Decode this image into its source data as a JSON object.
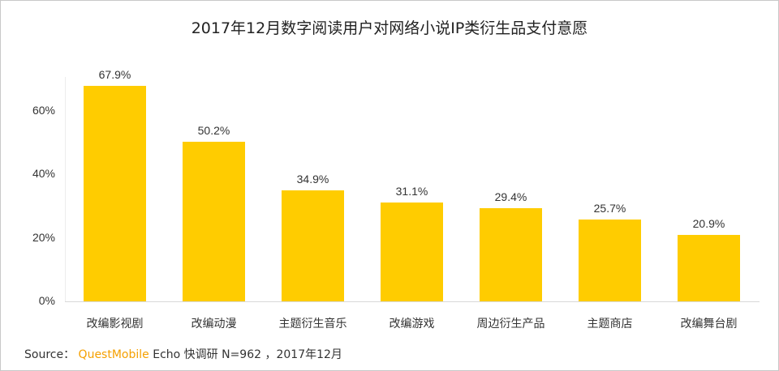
{
  "title": "2017年12月数字阅读用户对网络小说IP类衍生品支付意愿",
  "source": {
    "prefix": "Source：",
    "brand": "QuestMobile",
    "rest": "Echo 快调研  N=962 ，2017年12月"
  },
  "colors": {
    "bar": "#FFCC00",
    "brand": "#F5A000"
  },
  "yaxis": {
    "ticks": [
      "0%",
      "20%",
      "40%",
      "60%"
    ]
  },
  "bars": [
    {
      "label": "改编影视剧",
      "value": 67.9,
      "display": "67.9%"
    },
    {
      "label": "改编动漫",
      "value": 50.2,
      "display": "50.2%"
    },
    {
      "label": "主题衍生音乐",
      "value": 34.9,
      "display": "34.9%"
    },
    {
      "label": "改编游戏",
      "value": 31.1,
      "display": "31.1%"
    },
    {
      "label": "周边衍生产品",
      "value": 29.4,
      "display": "29.4%"
    },
    {
      "label": "主题商店",
      "value": 25.7,
      "display": "25.7%"
    },
    {
      "label": "改编舞台剧",
      "value": 20.9,
      "display": "20.9%"
    }
  ],
  "chart_data": {
    "type": "bar",
    "title": "2017年12月数字阅读用户对网络小说IP类衍生品支付意愿",
    "categories": [
      "改编影视剧",
      "改编动漫",
      "主题衍生音乐",
      "改编游戏",
      "周边衍生产品",
      "主题商店",
      "改编舞台剧"
    ],
    "values": [
      67.9,
      50.2,
      34.9,
      31.1,
      29.4,
      25.7,
      20.9
    ],
    "xlabel": "",
    "ylabel": "",
    "ylim": [
      0,
      70
    ],
    "yticks": [
      "0%",
      "20%",
      "40%",
      "60%"
    ],
    "grid": false,
    "legend": null,
    "data_labels": true,
    "source": "Source：QuestMobile Echo 快调研 N=962 ，2017年12月"
  }
}
